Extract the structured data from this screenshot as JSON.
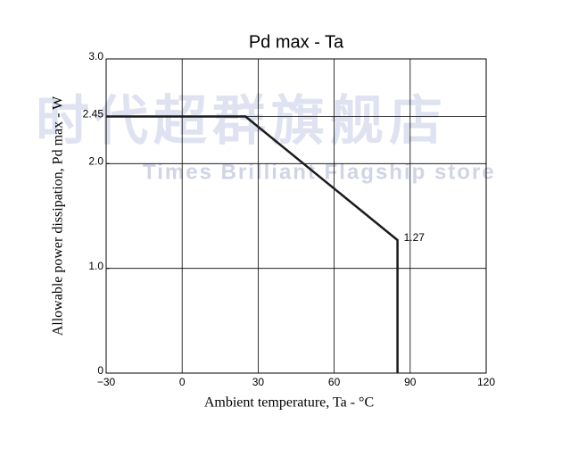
{
  "chart_data": {
    "type": "line",
    "title": "Pd max  -  Ta",
    "x_label": "Ambient temperature, Ta - °C",
    "y_label": "Allowable power dissipation, Pd max - W",
    "watermark": "时代超群旗舰店",
    "watermark_subtitle": "Times Brilliant Flagship store",
    "series": [
      {
        "color": "#1a1a1a",
        "x": [
          -30,
          25,
          85,
          85
        ],
        "values": [
          2.45,
          2.45,
          1.27,
          0
        ],
        "value_labels": [
          null,
          null,
          "1.27",
          null
        ]
      }
    ],
    "xlim": [
      -30,
      120
    ],
    "xticks": [
      {
        "value": -30,
        "label": "−30"
      },
      0,
      30,
      60,
      90,
      120
    ],
    "ylim": [
      0,
      3
    ],
    "yticks": [
      0,
      {
        "value": 1,
        "label": "1.0"
      },
      {
        "value": 2,
        "label": "2.0"
      },
      2.45,
      {
        "value": 3,
        "label": "3.0"
      }
    ],
    "grid": true
  }
}
